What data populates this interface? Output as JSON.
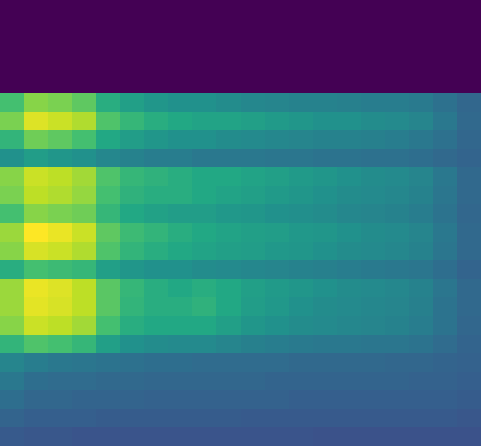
{
  "chart_data": {
    "type": "heatmap",
    "tick_labels": false,
    "cells": [
      [
        0,
        0,
        0,
        0,
        0,
        0,
        0,
        0,
        0,
        0,
        0,
        0,
        0,
        0,
        0,
        0,
        0,
        0,
        0,
        0
      ],
      [
        0,
        0,
        0,
        0,
        0,
        0,
        0,
        0,
        0,
        0,
        0,
        0,
        0,
        0,
        0,
        0,
        0,
        0,
        0,
        0
      ],
      [
        0,
        0,
        0,
        0,
        0,
        0,
        0,
        0,
        0,
        0,
        0,
        0,
        0,
        0,
        0,
        0,
        0,
        0,
        0,
        0
      ],
      [
        0,
        0,
        0,
        0,
        0,
        0,
        0,
        0,
        0,
        0,
        0,
        0,
        0,
        0,
        0,
        0,
        0,
        0,
        0,
        0
      ],
      [
        0,
        0,
        0,
        0,
        0,
        0,
        0,
        0,
        0,
        0,
        0,
        0,
        0,
        0,
        0,
        0,
        0,
        0,
        0,
        0
      ],
      [
        0.7,
        0.82,
        0.8,
        0.75,
        0.62,
        0.56,
        0.52,
        0.5,
        0.5,
        0.48,
        0.46,
        0.45,
        0.44,
        0.44,
        0.43,
        0.42,
        0.42,
        0.41,
        0.37,
        0.33
      ],
      [
        0.8,
        0.95,
        0.92,
        0.88,
        0.72,
        0.66,
        0.62,
        0.6,
        0.58,
        0.58,
        0.56,
        0.54,
        0.52,
        0.5,
        0.5,
        0.48,
        0.47,
        0.45,
        0.4,
        0.34
      ],
      [
        0.65,
        0.78,
        0.75,
        0.7,
        0.6,
        0.55,
        0.52,
        0.5,
        0.5,
        0.48,
        0.47,
        0.46,
        0.45,
        0.44,
        0.44,
        0.43,
        0.42,
        0.4,
        0.37,
        0.33
      ],
      [
        0.5,
        0.55,
        0.52,
        0.5,
        0.46,
        0.44,
        0.42,
        0.42,
        0.4,
        0.4,
        0.4,
        0.39,
        0.39,
        0.38,
        0.38,
        0.37,
        0.37,
        0.36,
        0.34,
        0.32
      ],
      [
        0.82,
        0.92,
        0.9,
        0.86,
        0.72,
        0.66,
        0.64,
        0.62,
        0.6,
        0.6,
        0.58,
        0.56,
        0.54,
        0.52,
        0.5,
        0.48,
        0.47,
        0.45,
        0.4,
        0.34
      ],
      [
        0.8,
        0.9,
        0.88,
        0.84,
        0.7,
        0.64,
        0.62,
        0.62,
        0.6,
        0.58,
        0.56,
        0.54,
        0.52,
        0.5,
        0.48,
        0.47,
        0.46,
        0.44,
        0.39,
        0.34
      ],
      [
        0.7,
        0.82,
        0.8,
        0.78,
        0.66,
        0.6,
        0.57,
        0.55,
        0.55,
        0.53,
        0.52,
        0.5,
        0.49,
        0.48,
        0.46,
        0.45,
        0.44,
        0.42,
        0.38,
        0.33
      ],
      [
        0.85,
        1.0,
        0.97,
        0.92,
        0.75,
        0.68,
        0.65,
        0.62,
        0.6,
        0.58,
        0.56,
        0.55,
        0.53,
        0.52,
        0.5,
        0.48,
        0.47,
        0.45,
        0.4,
        0.34
      ],
      [
        0.82,
        0.94,
        0.92,
        0.88,
        0.72,
        0.65,
        0.62,
        0.6,
        0.58,
        0.56,
        0.55,
        0.53,
        0.52,
        0.5,
        0.48,
        0.47,
        0.46,
        0.44,
        0.39,
        0.34
      ],
      [
        0.62,
        0.7,
        0.68,
        0.66,
        0.56,
        0.52,
        0.5,
        0.5,
        0.48,
        0.47,
        0.46,
        0.45,
        0.44,
        0.43,
        0.42,
        0.41,
        0.4,
        0.39,
        0.36,
        0.32
      ],
      [
        0.85,
        0.97,
        0.95,
        0.9,
        0.74,
        0.66,
        0.62,
        0.6,
        0.62,
        0.6,
        0.56,
        0.54,
        0.52,
        0.5,
        0.48,
        0.47,
        0.46,
        0.44,
        0.39,
        0.34
      ],
      [
        0.85,
        0.96,
        0.94,
        0.9,
        0.74,
        0.65,
        0.62,
        0.62,
        0.64,
        0.6,
        0.55,
        0.53,
        0.5,
        0.48,
        0.47,
        0.46,
        0.45,
        0.43,
        0.38,
        0.34
      ],
      [
        0.82,
        0.92,
        0.9,
        0.86,
        0.7,
        0.62,
        0.6,
        0.6,
        0.6,
        0.56,
        0.52,
        0.5,
        0.48,
        0.47,
        0.46,
        0.45,
        0.44,
        0.42,
        0.38,
        0.33
      ],
      [
        0.65,
        0.72,
        0.7,
        0.66,
        0.56,
        0.5,
        0.48,
        0.47,
        0.47,
        0.45,
        0.43,
        0.42,
        0.41,
        0.4,
        0.4,
        0.39,
        0.39,
        0.38,
        0.35,
        0.32
      ],
      [
        0.45,
        0.42,
        0.4,
        0.39,
        0.38,
        0.37,
        0.36,
        0.36,
        0.35,
        0.35,
        0.35,
        0.35,
        0.34,
        0.34,
        0.34,
        0.34,
        0.33,
        0.33,
        0.32,
        0.31
      ],
      [
        0.4,
        0.36,
        0.35,
        0.35,
        0.34,
        0.34,
        0.33,
        0.33,
        0.33,
        0.33,
        0.33,
        0.32,
        0.32,
        0.32,
        0.32,
        0.32,
        0.32,
        0.31,
        0.31,
        0.3
      ],
      [
        0.36,
        0.33,
        0.33,
        0.32,
        0.32,
        0.32,
        0.31,
        0.31,
        0.31,
        0.31,
        0.31,
        0.31,
        0.3,
        0.3,
        0.3,
        0.3,
        0.3,
        0.3,
        0.3,
        0.29
      ],
      [
        0.32,
        0.3,
        0.3,
        0.3,
        0.29,
        0.29,
        0.29,
        0.29,
        0.29,
        0.29,
        0.28,
        0.28,
        0.28,
        0.28,
        0.28,
        0.28,
        0.28,
        0.28,
        0.28,
        0.27
      ],
      [
        0.28,
        0.27,
        0.27,
        0.26,
        0.26,
        0.26,
        0.26,
        0.26,
        0.26,
        0.26,
        0.26,
        0.26,
        0.26,
        0.25,
        0.25,
        0.25,
        0.25,
        0.25,
        0.25,
        0.25
      ]
    ]
  }
}
